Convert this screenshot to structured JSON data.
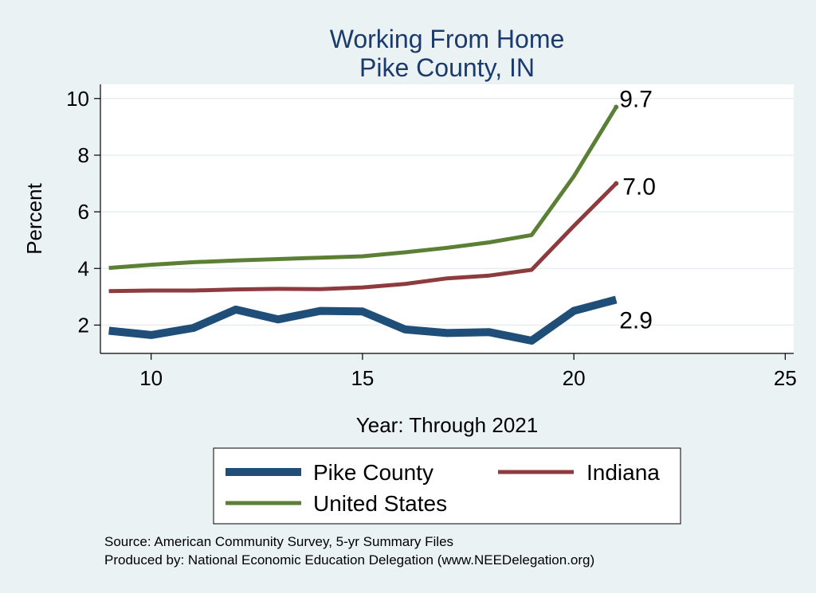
{
  "chart_data": {
    "type": "line",
    "title": [
      "Working From Home",
      "Pike County, IN"
    ],
    "xlabel": "Year: Through 2021",
    "ylabel": "Percent",
    "xlim": [
      8.8,
      25.2
    ],
    "ylim": [
      1.0,
      10.5
    ],
    "x_ticks": [
      10,
      15,
      20,
      25
    ],
    "y_ticks": [
      2,
      4,
      6,
      8,
      10
    ],
    "grid": true,
    "legend_position": "bottom",
    "x": [
      9,
      10,
      11,
      12,
      13,
      14,
      15,
      16,
      17,
      18,
      19,
      20,
      21
    ],
    "series": [
      {
        "name": "Pike County",
        "color": "#1f4e79",
        "values": [
          1.8,
          1.65,
          1.9,
          2.55,
          2.2,
          2.5,
          2.48,
          1.85,
          1.72,
          1.75,
          1.45,
          2.5,
          2.9
        ],
        "end_label": "2.9"
      },
      {
        "name": "Indiana",
        "color": "#8e3b3f",
        "values": [
          3.2,
          3.22,
          3.22,
          3.26,
          3.28,
          3.27,
          3.33,
          3.45,
          3.65,
          3.75,
          3.95,
          5.5,
          7.0
        ],
        "end_label": "7.0"
      },
      {
        "name": "United States",
        "color": "#5b7f35",
        "values": [
          4.02,
          4.13,
          4.22,
          4.28,
          4.33,
          4.38,
          4.43,
          4.57,
          4.73,
          4.92,
          5.18,
          7.25,
          9.7
        ],
        "end_label": "9.7"
      }
    ]
  },
  "source_lines": [
    "Source: American Community Survey, 5-yr Summary Files",
    "Produced by: National Economic Education Delegation (www.NEEDelegation.org)"
  ]
}
